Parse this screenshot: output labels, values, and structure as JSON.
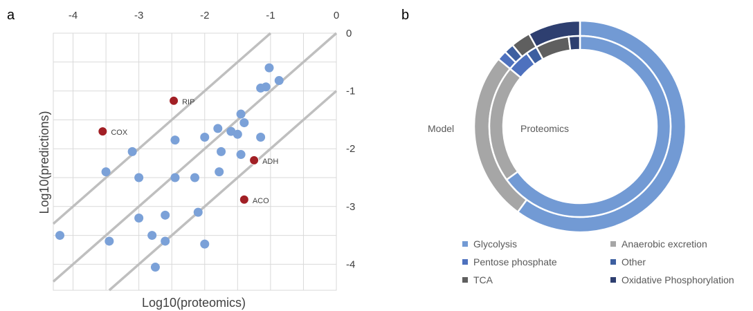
{
  "panels": {
    "a_label": "a",
    "b_label": "b"
  },
  "colors": {
    "point": "#7BA1D8",
    "highlight": "#A11F25",
    "line": "#BFBFBF",
    "grid": "#D9D9D9",
    "glycolysis": "#729AD4",
    "anaerobic": "#A6A6A6",
    "pentose": "#4E71BE",
    "other": "#3D5FA0",
    "tca": "#5F5F5F",
    "oxphos": "#2E3F70"
  },
  "chart_data": [
    {
      "type": "scatter",
      "xlabel": "Log10(proteomics)",
      "ylabel": "Log10(predictions)",
      "xlim": [
        -4.3,
        0
      ],
      "ylim": [
        -4.45,
        0
      ],
      "xticks": [
        "-4",
        "-3",
        "-2",
        "-1",
        "0"
      ],
      "yticks": [
        "0",
        "-1",
        "-2",
        "-3",
        "-4"
      ],
      "grid": true,
      "reference_lines": [
        {
          "slope": 1,
          "intercept": 1
        },
        {
          "slope": 1,
          "intercept": 0
        },
        {
          "slope": 1,
          "intercept": -1
        }
      ],
      "points": [
        {
          "x": -4.2,
          "y": -3.5
        },
        {
          "x": -3.5,
          "y": -2.4
        },
        {
          "x": -3.45,
          "y": -3.6
        },
        {
          "x": -3.1,
          "y": -2.05
        },
        {
          "x": -3.0,
          "y": -2.5
        },
        {
          "x": -3.0,
          "y": -3.2
        },
        {
          "x": -2.8,
          "y": -3.5
        },
        {
          "x": -2.75,
          "y": -4.05
        },
        {
          "x": -2.6,
          "y": -3.15
        },
        {
          "x": -2.6,
          "y": -3.6
        },
        {
          "x": -2.45,
          "y": -1.85
        },
        {
          "x": -2.45,
          "y": -2.5
        },
        {
          "x": -2.15,
          "y": -2.5
        },
        {
          "x": -2.1,
          "y": -3.1
        },
        {
          "x": -2.0,
          "y": -1.8
        },
        {
          "x": -2.0,
          "y": -3.65
        },
        {
          "x": -1.8,
          "y": -1.65
        },
        {
          "x": -1.78,
          "y": -2.4
        },
        {
          "x": -1.75,
          "y": -2.05
        },
        {
          "x": -1.6,
          "y": -1.7
        },
        {
          "x": -1.5,
          "y": -1.75
        },
        {
          "x": -1.45,
          "y": -1.4
        },
        {
          "x": -1.45,
          "y": -2.1
        },
        {
          "x": -1.4,
          "y": -1.55
        },
        {
          "x": -1.15,
          "y": -1.8
        },
        {
          "x": -1.15,
          "y": -0.95
        },
        {
          "x": -1.07,
          "y": -0.93
        },
        {
          "x": -1.02,
          "y": -0.6
        },
        {
          "x": -0.87,
          "y": -0.82
        }
      ],
      "highlighted": [
        {
          "label": "COX",
          "x": -3.55,
          "y": -1.7
        },
        {
          "label": "RIP",
          "x": -2.47,
          "y": -1.17
        },
        {
          "label": "ADH",
          "x": -1.25,
          "y": -2.2
        },
        {
          "label": "ACO",
          "x": -1.4,
          "y": -2.88
        }
      ]
    },
    {
      "type": "pie",
      "subtype": "double-donut",
      "outer_ring_label": "Model",
      "inner_ring_label": "Proteomics",
      "categories": [
        "Glycolysis",
        "Anaerobic excretion",
        "Pentose phosphate",
        "Other",
        "TCA",
        "Oxidative Phosphorylation"
      ],
      "series": [
        {
          "name": "Model",
          "ring": "outer",
          "values": [
            60,
            26,
            1.5,
            1.5,
            3,
            8
          ]
        },
        {
          "name": "Proteomics",
          "ring": "inner",
          "values": [
            65,
            21,
            4,
            2,
            6,
            2
          ]
        }
      ],
      "legend": [
        {
          "label": "Glycolysis",
          "color_key": "glycolysis"
        },
        {
          "label": "Anaerobic excretion",
          "color_key": "anaerobic"
        },
        {
          "label": "Pentose phosphate",
          "color_key": "pentose"
        },
        {
          "label": "Other",
          "color_key": "other"
        },
        {
          "label": "TCA",
          "color_key": "tca"
        },
        {
          "label": "Oxidative Phosphorylation",
          "color_key": "oxphos"
        }
      ],
      "legend_position": "bottom"
    }
  ]
}
